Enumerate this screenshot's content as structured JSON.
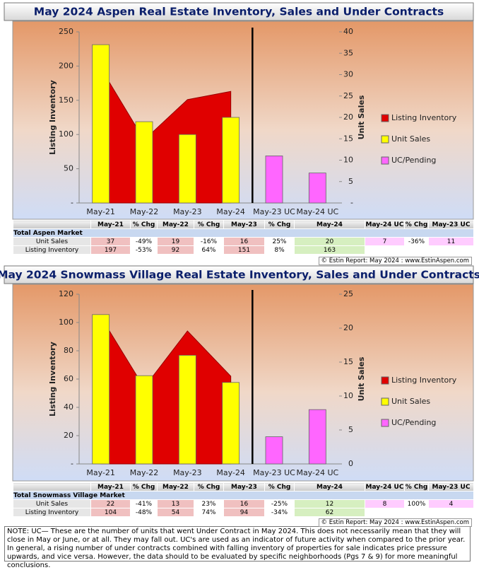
{
  "chart_data": [
    {
      "type": "bar",
      "title": "May 2024 Aspen Real Estate Inventory, Sales and Under Contracts",
      "y_label": "Listing Inventory",
      "y2_label": "Unit Sales",
      "categories": [
        "May-21",
        "May-22",
        "May-23",
        "May-24",
        "May-23 UC",
        "May-24 UC"
      ],
      "ylim": [
        0,
        250
      ],
      "yticks": [
        {
          "value": 0,
          "label": "-"
        },
        50,
        100,
        150,
        200,
        250
      ],
      "y2lim": [
        0,
        40
      ],
      "y2ticks": [
        {
          "value": 0,
          "label": "-"
        },
        5,
        10,
        15,
        20,
        25,
        30,
        35,
        40
      ],
      "series": [
        {
          "name": "Listing Inventory",
          "type": "area",
          "color": "#e00000",
          "values": [
            197,
            92,
            151,
            163,
            null,
            null
          ]
        },
        {
          "name": "Unit Sales",
          "type": "bar",
          "axis": "y2",
          "color": "#ffff00",
          "values": [
            37,
            19,
            16,
            20,
            null,
            null
          ]
        },
        {
          "name": "UC/Pending",
          "type": "bar",
          "axis": "y2",
          "color": "#ff66ff",
          "values": [
            null,
            null,
            null,
            null,
            11,
            7
          ]
        }
      ]
    },
    {
      "type": "bar",
      "title": "May 2024 Snowmass Village Real Estate Inventory, Sales and Under Contracts",
      "y_label": "Listing Inventory",
      "y2_label": "Unit Sales",
      "categories": [
        "May-21",
        "May-22",
        "May-23",
        "May-24",
        "May-23 UC",
        "May-24 UC"
      ],
      "ylim": [
        0,
        120
      ],
      "yticks": [
        {
          "value": 0,
          "label": "-"
        },
        20,
        40,
        60,
        80,
        100,
        120
      ],
      "y2lim": [
        0,
        25
      ],
      "y2ticks": [
        0,
        5,
        10,
        15,
        20,
        25
      ],
      "series": [
        {
          "name": "Listing Inventory",
          "type": "area",
          "color": "#e00000",
          "values": [
            104,
            54,
            94,
            62,
            null,
            null
          ]
        },
        {
          "name": "Unit Sales",
          "type": "bar",
          "axis": "y2",
          "color": "#ffff00",
          "values": [
            22,
            13,
            16,
            12,
            null,
            null
          ]
        },
        {
          "name": "UC/Pending",
          "type": "bar",
          "axis": "y2",
          "color": "#ff66ff",
          "values": [
            null,
            null,
            null,
            null,
            4,
            8
          ]
        }
      ]
    }
  ],
  "tables": [
    {
      "header": [
        "May-21",
        "% Chg",
        "May-22",
        "% Chg",
        "May-23",
        "% Chg",
        "May-24",
        "May-24 UC",
        "% Chg",
        "May-23 UC"
      ],
      "section": "Total Aspen Market",
      "rows": [
        {
          "label": "Unit Sales",
          "cells": [
            37,
            "-49%",
            19,
            "-16%",
            16,
            "25%",
            20,
            7,
            "-36%",
            11
          ]
        },
        {
          "label": "Listing Inventory",
          "cells": [
            197,
            "-53%",
            92,
            "64%",
            151,
            "8%",
            163
          ]
        }
      ],
      "credit": "© Estin Report: May 2024 : www.EstinAspen.com"
    },
    {
      "header": [
        "May-21",
        "% Chg",
        "May-22",
        "% Chg",
        "May-23",
        "% Chg",
        "May-24",
        "May-24 UC",
        "% Chg",
        "May-23 UC"
      ],
      "section": "Total Snowmass Village Market",
      "rows": [
        {
          "label": "Unit Sales",
          "cells": [
            22,
            "-41%",
            13,
            "23%",
            16,
            "-25%",
            12,
            8,
            "100%",
            4
          ]
        },
        {
          "label": "Listing Inventory",
          "cells": [
            104,
            "-48%",
            54,
            "74%",
            94,
            "-34%",
            62
          ]
        }
      ],
      "credit": "© Estin Report: May 2024 : www.EstinAspen.com"
    }
  ],
  "note": "NOTE: UC— These are the number of units that went Under Contract in May 2024. This does not necessarily mean that they will close in May or June, or at all. They may fall out. UC's are used as an indicator of future activity when compared to the prior year. In general, a rising number of under contracts combined with falling inventory of properties for sale indicates price pressure upwards, and vice versa. However, the data should to be evaluated by specific neighborhoods (Pgs 7 & 9) for more meaningful conclusions."
}
